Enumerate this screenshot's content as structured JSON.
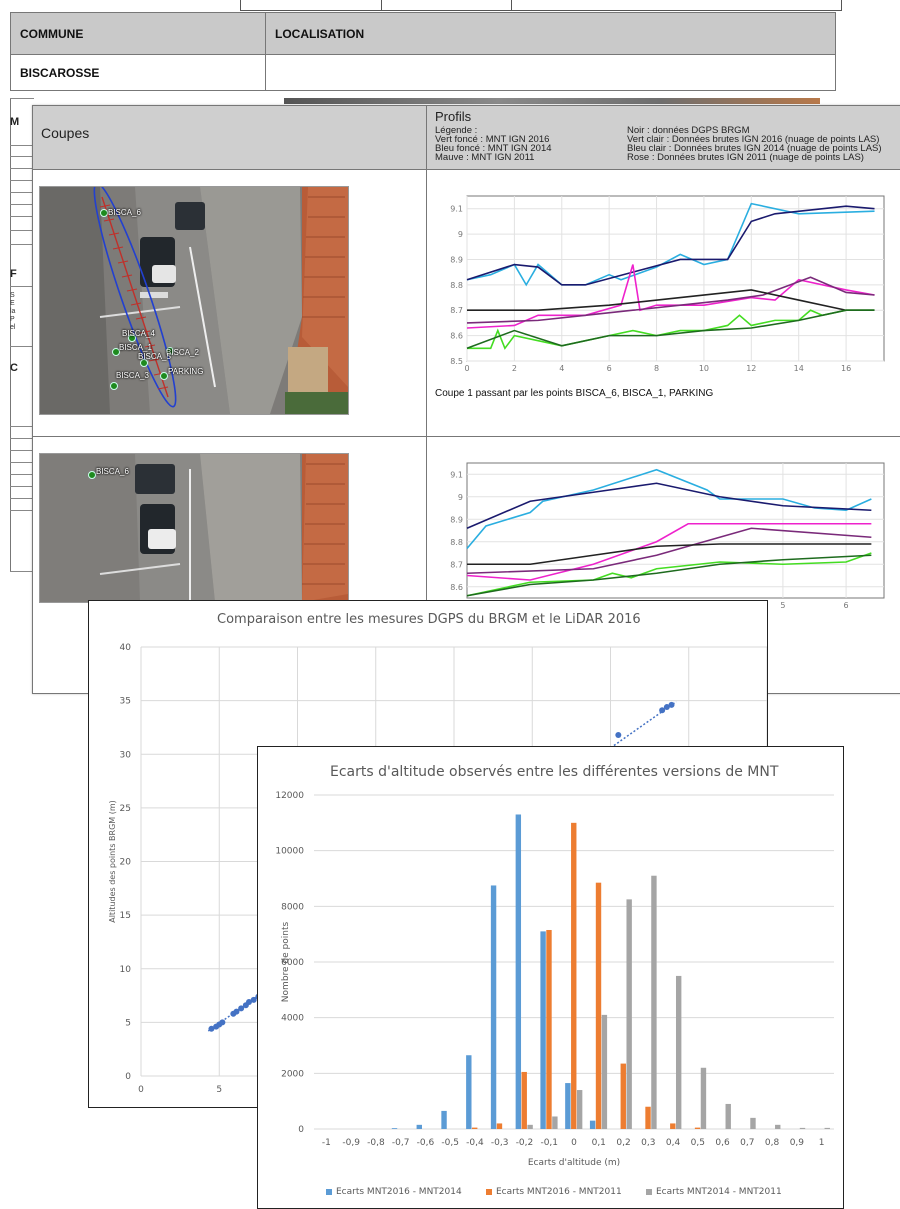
{
  "doc_back": {
    "col_commune": "COMMUNE",
    "col_localisation": "LOCALISATION",
    "commune_value": "BISCAROSSE",
    "fragments": [
      "M",
      "F",
      "C"
    ],
    "tiny_lines": [
      "S",
      "E",
      "la",
      "P",
      "el"
    ]
  },
  "doc_mid": {
    "coupes_label": "Coupes",
    "profils_label": "Profils",
    "legend_left": [
      "Légende :",
      "Vert foncé : MNT IGN 2016",
      "Bleu foncé : MNT IGN 2014",
      "Mauve : MNT IGN 2011"
    ],
    "legend_right": [
      "Noir : données DGPS BRGM",
      "Vert clair : Données brutes IGN 2016 (nuage de points LAS)",
      "Bleu clair : Données brutes IGN 2014 (nuage de points LAS)",
      "Rose : Données brutes IGN 2011 (nuage de points LAS)"
    ],
    "map1_labels": [
      "BISCA_6",
      "BISCA_4",
      "BISCA_1",
      "BISCA_2",
      "BISCA_3",
      "BISCA_5",
      "PARKING"
    ],
    "map2_labels": [
      "BISCA_6"
    ],
    "caption1": "Coupe 1 passant par les points BISCA_6, BISCA_1, PARKING",
    "colors": {
      "dark_green": "#1e6b1e",
      "light_green": "#44dd22",
      "dark_blue": "#1a1a6e",
      "light_blue": "#2aaee0",
      "mauve": "#7a2a7a",
      "pink": "#ee22cc",
      "black": "#222222"
    }
  },
  "profile1": {
    "y_ticks": [
      "9.1",
      "9",
      "8.9",
      "8.8",
      "8.7",
      "8.6",
      "8.5"
    ],
    "x_ticks": [
      "0",
      "2",
      "4",
      "6",
      "8",
      "10",
      "12",
      "14",
      "16"
    ],
    "xlim": [
      0,
      17.6
    ],
    "ylim": [
      8.5,
      9.15
    ],
    "series": [
      {
        "color": "#2aaee0",
        "points": [
          [
            0,
            8.82
          ],
          [
            1,
            8.84
          ],
          [
            2,
            8.88
          ],
          [
            2.5,
            8.8
          ],
          [
            3,
            8.88
          ],
          [
            4,
            8.8
          ],
          [
            5,
            8.8
          ],
          [
            6,
            8.84
          ],
          [
            6.5,
            8.82
          ],
          [
            8,
            8.87
          ],
          [
            9,
            8.92
          ],
          [
            10,
            8.88
          ],
          [
            11,
            8.9
          ],
          [
            12,
            9.12
          ],
          [
            14,
            9.08
          ],
          [
            17.2,
            9.09
          ]
        ]
      },
      {
        "color": "#1a1a6e",
        "points": [
          [
            0,
            8.82
          ],
          [
            2,
            8.88
          ],
          [
            3,
            8.87
          ],
          [
            4,
            8.8
          ],
          [
            5,
            8.8
          ],
          [
            7,
            8.85
          ],
          [
            9,
            8.9
          ],
          [
            11,
            8.9
          ],
          [
            12,
            9.05
          ],
          [
            13,
            9.08
          ],
          [
            16,
            9.11
          ],
          [
            17.2,
            9.1
          ]
        ]
      },
      {
        "color": "#ee22cc",
        "points": [
          [
            0,
            8.63
          ],
          [
            2,
            8.64
          ],
          [
            3,
            8.68
          ],
          [
            5,
            8.68
          ],
          [
            6.5,
            8.72
          ],
          [
            7,
            8.88
          ],
          [
            7.3,
            8.7
          ],
          [
            8,
            8.72
          ],
          [
            10,
            8.72
          ],
          [
            12,
            8.75
          ],
          [
            13,
            8.74
          ],
          [
            14,
            8.82
          ],
          [
            16,
            8.78
          ],
          [
            17.2,
            8.76
          ]
        ]
      },
      {
        "color": "#7a2a7a",
        "points": [
          [
            0,
            8.65
          ],
          [
            3,
            8.66
          ],
          [
            5,
            8.68
          ],
          [
            7,
            8.7
          ],
          [
            9,
            8.72
          ],
          [
            11,
            8.74
          ],
          [
            12.5,
            8.76
          ],
          [
            14.5,
            8.83
          ],
          [
            16,
            8.77
          ],
          [
            17.2,
            8.76
          ]
        ]
      },
      {
        "color": "#222222",
        "points": [
          [
            0,
            8.7
          ],
          [
            3,
            8.7
          ],
          [
            6,
            8.72
          ],
          [
            9,
            8.75
          ],
          [
            12,
            8.78
          ],
          [
            14,
            8.74
          ],
          [
            16,
            8.7
          ],
          [
            17.2,
            8.7
          ]
        ]
      },
      {
        "color": "#44dd22",
        "points": [
          [
            0,
            8.55
          ],
          [
            1,
            8.55
          ],
          [
            1.3,
            8.62
          ],
          [
            1.6,
            8.55
          ],
          [
            2,
            8.6
          ],
          [
            3,
            8.58
          ],
          [
            4,
            8.56
          ],
          [
            5,
            8.58
          ],
          [
            6,
            8.6
          ],
          [
            7,
            8.62
          ],
          [
            8,
            8.6
          ],
          [
            9,
            8.62
          ],
          [
            10,
            8.62
          ],
          [
            11,
            8.64
          ],
          [
            11.5,
            8.68
          ],
          [
            12,
            8.64
          ],
          [
            13,
            8.66
          ],
          [
            14,
            8.66
          ],
          [
            14.5,
            8.7
          ],
          [
            15,
            8.68
          ],
          [
            16,
            8.7
          ],
          [
            17.2,
            8.7
          ]
        ]
      },
      {
        "color": "#1e6b1e",
        "points": [
          [
            0,
            8.55
          ],
          [
            2,
            8.62
          ],
          [
            4,
            8.56
          ],
          [
            6,
            8.6
          ],
          [
            8,
            8.6
          ],
          [
            10,
            8.62
          ],
          [
            12,
            8.63
          ],
          [
            14,
            8.66
          ],
          [
            16,
            8.7
          ],
          [
            17.2,
            8.7
          ]
        ]
      }
    ]
  },
  "profile2": {
    "y_ticks": [
      "9.1",
      "9",
      "8.9",
      "8.8",
      "8.7",
      "8.6"
    ],
    "x_ticks": [
      "5",
      "6"
    ],
    "xlim": [
      0,
      6.6
    ],
    "ylim": [
      8.55,
      9.15
    ],
    "series": [
      {
        "color": "#2aaee0",
        "points": [
          [
            0,
            8.77
          ],
          [
            0.3,
            8.87
          ],
          [
            1,
            8.93
          ],
          [
            1.2,
            8.98
          ],
          [
            2,
            9.03
          ],
          [
            3,
            9.12
          ],
          [
            3.8,
            9.03
          ],
          [
            4,
            8.99
          ],
          [
            5,
            8.99
          ],
          [
            5.5,
            8.95
          ],
          [
            6,
            8.94
          ],
          [
            6.4,
            8.99
          ]
        ]
      },
      {
        "color": "#1a1a6e",
        "points": [
          [
            0,
            8.86
          ],
          [
            1,
            8.98
          ],
          [
            2,
            9.02
          ],
          [
            3,
            9.06
          ],
          [
            4,
            9.0
          ],
          [
            5,
            8.96
          ],
          [
            6.4,
            8.94
          ]
        ]
      },
      {
        "color": "#ee22cc",
        "points": [
          [
            0,
            8.65
          ],
          [
            1,
            8.63
          ],
          [
            2,
            8.7
          ],
          [
            3,
            8.8
          ],
          [
            3.5,
            8.88
          ],
          [
            6.4,
            8.88
          ]
        ]
      },
      {
        "color": "#7a2a7a",
        "points": [
          [
            0,
            8.66
          ],
          [
            2,
            8.68
          ],
          [
            3,
            8.74
          ],
          [
            4,
            8.82
          ],
          [
            4.5,
            8.86
          ],
          [
            6.4,
            8.82
          ]
        ]
      },
      {
        "color": "#222222",
        "points": [
          [
            0,
            8.7
          ],
          [
            1,
            8.7
          ],
          [
            2,
            8.74
          ],
          [
            3,
            8.78
          ],
          [
            4,
            8.79
          ],
          [
            6.4,
            8.79
          ]
        ]
      },
      {
        "color": "#44dd22",
        "points": [
          [
            0,
            8.56
          ],
          [
            1,
            8.62
          ],
          [
            2,
            8.63
          ],
          [
            2.3,
            8.66
          ],
          [
            2.6,
            8.64
          ],
          [
            3,
            8.68
          ],
          [
            4,
            8.71
          ],
          [
            5,
            8.7
          ],
          [
            6,
            8.71
          ],
          [
            6.4,
            8.75
          ]
        ]
      },
      {
        "color": "#1e6b1e",
        "points": [
          [
            0,
            8.56
          ],
          [
            1,
            8.61
          ],
          [
            2,
            8.63
          ],
          [
            3,
            8.66
          ],
          [
            4,
            8.7
          ],
          [
            5,
            8.72
          ],
          [
            6.4,
            8.74
          ]
        ]
      }
    ]
  },
  "chart_data": [
    {
      "type": "scatter",
      "title": "Comparaison entre les mesures DGPS du BRGM et le LiDAR 2016",
      "ylabel": "Altitudes des points BRGM (m)",
      "xlabel": "",
      "ylim": [
        0,
        40
      ],
      "y_ticks": [
        "0",
        "5",
        "10",
        "15",
        "20",
        "25",
        "30",
        "35",
        "40"
      ],
      "x_ticks": [
        "0",
        "5"
      ],
      "xlim": [
        0,
        40
      ],
      "color": "#4472c4",
      "points": [
        [
          4.5,
          4.4
        ],
        [
          4.8,
          4.6
        ],
        [
          5.0,
          4.8
        ],
        [
          5.2,
          5.0
        ],
        [
          5.9,
          5.8
        ],
        [
          6.1,
          6.0
        ],
        [
          6.4,
          6.3
        ],
        [
          6.7,
          6.6
        ],
        [
          6.9,
          6.9
        ],
        [
          7.2,
          7.1
        ],
        [
          7.5,
          7.4
        ],
        [
          30.5,
          31.8
        ],
        [
          33.3,
          34.1
        ],
        [
          33.6,
          34.4
        ],
        [
          33.9,
          34.6
        ]
      ]
    },
    {
      "type": "bar",
      "title": "Ecarts d'altitude observés entre les différentes versions de MNT",
      "xlabel": "Ecarts d'altitude (m)",
      "ylabel": "Nombre de points",
      "ylim": [
        0,
        12000
      ],
      "y_ticks": [
        "0",
        "2000",
        "4000",
        "6000",
        "8000",
        "10000",
        "12000"
      ],
      "categories": [
        "-1",
        "-0,9",
        "-0,8",
        "-0,7",
        "-0,6",
        "-0,5",
        "-0,4",
        "-0,3",
        "-0,2",
        "-0,1",
        "0",
        "0,1",
        "0,2",
        "0,3",
        "0,4",
        "0,5",
        "0,6",
        "0,7",
        "0,8",
        "0,9",
        "1"
      ],
      "legend_position": "bottom",
      "series": [
        {
          "name": "Ecarts MNT2016 - MNT2014",
          "color": "#5b9bd5",
          "values": [
            0,
            0,
            0,
            30,
            150,
            650,
            2650,
            8750,
            11300,
            7100,
            1650,
            300,
            0,
            0,
            0,
            0,
            0,
            0,
            0,
            0,
            0
          ]
        },
        {
          "name": "Ecarts MNT2016 - MNT2011",
          "color": "#ed7d31",
          "values": [
            0,
            0,
            0,
            0,
            0,
            0,
            50,
            200,
            2050,
            7150,
            11000,
            8850,
            2350,
            800,
            200,
            50,
            0,
            0,
            0,
            0,
            0
          ]
        },
        {
          "name": "Ecarts MNT2014 - MNT2011",
          "color": "#a5a5a5",
          "values": [
            0,
            0,
            0,
            0,
            0,
            0,
            0,
            0,
            150,
            450,
            1400,
            4100,
            8250,
            9100,
            5500,
            2200,
            900,
            400,
            150,
            40,
            40
          ]
        }
      ]
    }
  ]
}
